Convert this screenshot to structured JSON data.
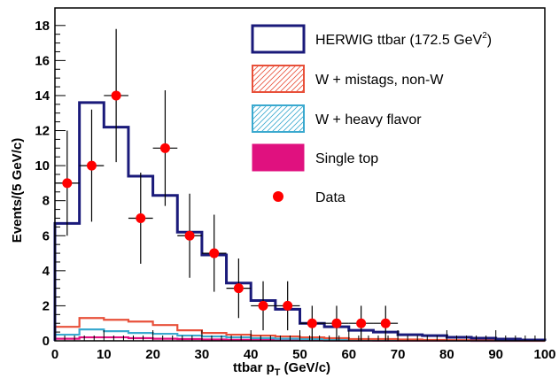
{
  "chart_data": {
    "type": "histogram",
    "xlabel": "ttbar p",
    "xlabel_sub": "T",
    "xlabel_unit": " (GeV/c)",
    "ylabel": "Events/(5 GeV/c)",
    "xlim": [
      0,
      100
    ],
    "ylim": [
      0,
      19
    ],
    "x_ticks": [
      0,
      10,
      20,
      30,
      40,
      50,
      60,
      70,
      80,
      90,
      100
    ],
    "y_ticks": [
      0,
      2,
      4,
      6,
      8,
      10,
      12,
      14,
      16,
      18
    ],
    "bin_edges": [
      0,
      5,
      10,
      15,
      20,
      25,
      30,
      35,
      40,
      45,
      50,
      55,
      60,
      65,
      70,
      75,
      80,
      85,
      90,
      95,
      100
    ],
    "series": [
      {
        "name": "HERWIG ttbar (172.5 GeV",
        "name_sup": "2",
        "name_tail": ")",
        "style": "step",
        "color": "#1a1a7a",
        "values": [
          6.7,
          13.6,
          12.2,
          9.4,
          8.3,
          6.2,
          4.9,
          3.3,
          2.3,
          1.8,
          1.0,
          0.8,
          0.6,
          0.5,
          0.35,
          0.3,
          0.2,
          0.15,
          0.1,
          0.05
        ]
      },
      {
        "name": "W + mistags, non-W",
        "style": "step",
        "color": "#e8503a",
        "values": [
          0.8,
          1.3,
          1.2,
          1.1,
          0.9,
          0.6,
          0.45,
          0.35,
          0.3,
          0.25,
          0.2,
          0.15,
          0.1,
          0.1,
          0.08,
          0.05,
          0.04,
          0.03,
          0.02,
          0.01
        ]
      },
      {
        "name": "W + heavy flavor",
        "style": "step",
        "color": "#3aa9cf",
        "values": [
          0.35,
          0.65,
          0.55,
          0.45,
          0.4,
          0.3,
          0.25,
          0.2,
          0.15,
          0.12,
          0.1,
          0.08,
          0.06,
          0.05,
          0.04,
          0.03,
          0.02,
          0.02,
          0.01,
          0.01
        ]
      },
      {
        "name": "Single top",
        "style": "step",
        "color": "#e0117f",
        "values": [
          0.12,
          0.2,
          0.2,
          0.15,
          0.12,
          0.1,
          0.08,
          0.06,
          0.05,
          0.04,
          0.03,
          0.02,
          0.02,
          0.01,
          0.01,
          0.01,
          0.01,
          0.0,
          0.0,
          0.0
        ]
      }
    ],
    "data": {
      "name": "Data",
      "color": "#ff0000",
      "x": [
        2.5,
        7.5,
        12.5,
        17.5,
        22.5,
        27.5,
        32.5,
        37.5,
        42.5,
        47.5,
        52.5,
        57.5,
        62.5,
        67.5
      ],
      "y": [
        9,
        10,
        14,
        7,
        11,
        6,
        5,
        3,
        2,
        2,
        1,
        1,
        1,
        1
      ],
      "err": [
        3,
        3.2,
        3.8,
        2.6,
        3.3,
        2.4,
        2.2,
        1.7,
        1.4,
        1.4,
        1.0,
        1.0,
        1.0,
        1.0
      ]
    },
    "legend_position": "top-right",
    "grid": false
  }
}
